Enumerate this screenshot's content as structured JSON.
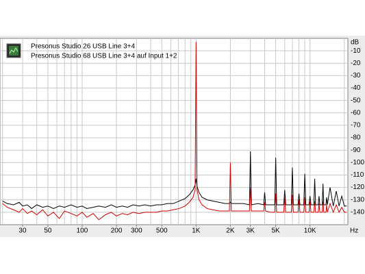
{
  "chart_data": {
    "type": "line",
    "log_x": true,
    "grid": true,
    "y_label": "dB",
    "x_label": "Hz",
    "xlim": [
      19,
      21500
    ],
    "ylim": [
      -150,
      0
    ],
    "xticks": [
      30,
      50,
      100,
      200,
      300,
      500,
      {
        "value": 1000,
        "label": "1K"
      },
      {
        "value": 2000,
        "label": "2K"
      },
      {
        "value": 3000,
        "label": "3K"
      },
      {
        "value": 5000,
        "label": "5K"
      },
      {
        "value": 10000,
        "label": "10K"
      }
    ],
    "xgrid": [
      20,
      30,
      40,
      50,
      60,
      70,
      80,
      90,
      100,
      200,
      300,
      400,
      500,
      600,
      700,
      800,
      900,
      1000,
      2000,
      3000,
      4000,
      5000,
      6000,
      7000,
      8000,
      9000,
      10000,
      20000
    ],
    "yticks": [
      -10,
      -20,
      -30,
      -40,
      -50,
      -60,
      -70,
      -80,
      -90,
      -100,
      -110,
      -120,
      -130,
      -140
    ],
    "x": [
      20,
      22,
      25,
      28,
      30,
      33,
      36,
      40,
      45,
      50,
      56,
      63,
      70,
      80,
      90,
      100,
      110,
      125,
      140,
      160,
      180,
      200,
      225,
      250,
      280,
      315,
      355,
      400,
      450,
      500,
      560,
      630,
      710,
      800,
      870,
      940,
      980,
      1000,
      1020,
      1060,
      1130,
      1250,
      1400,
      1600,
      1800,
      1960,
      2000,
      2040,
      2300,
      2600,
      2940,
      3000,
      3060,
      3500,
      3920,
      4000,
      4080,
      4500,
      4900,
      5000,
      5100,
      5500,
      5880,
      6000,
      6120,
      6500,
      6860,
      7000,
      7140,
      7500,
      7840,
      8000,
      8160,
      8500,
      8820,
      9000,
      9180,
      9500,
      9800,
      10000,
      10200,
      10800,
      11000,
      11200,
      11800,
      12000,
      12200,
      12800,
      13000,
      13200,
      13800,
      14000,
      14200,
      15000,
      16000,
      17000,
      18000,
      19000,
      20000,
      21000
    ],
    "series": [
      {
        "name": "Presonus Studio 26 USB Line 3+4",
        "color": "#000000",
        "values": [
          -131,
          -133,
          -134,
          -132,
          -135,
          -134,
          -137,
          -134,
          -136,
          -135,
          -137,
          -135,
          -136,
          -134,
          -136,
          -135,
          -137,
          -136,
          -135,
          -136,
          -134,
          -136,
          -135,
          -136,
          -134,
          -135,
          -134,
          -135,
          -134,
          -134,
          -133,
          -133,
          -131,
          -129,
          -126,
          -122,
          -118,
          -113,
          -119,
          -124,
          -128,
          -130,
          -131,
          -132,
          -133,
          -133,
          -132,
          -133,
          -133,
          -133,
          -134,
          -91,
          -134,
          -133,
          -134,
          -124,
          -134,
          -134,
          -134,
          -96,
          -134,
          -134,
          -134,
          -122,
          -134,
          -134,
          -134,
          -104,
          -134,
          -134,
          -134,
          -125,
          -134,
          -134,
          -134,
          -109,
          -134,
          -134,
          -134,
          -127,
          -134,
          -134,
          -113,
          -134,
          -134,
          -127,
          -134,
          -134,
          -117,
          -134,
          -134,
          -128,
          -134,
          -120,
          -135,
          -123,
          -135,
          -127,
          -135,
          -135
        ]
      },
      {
        "name": "Presonus Studio 68 USB Line 3+4 auf Input 1+2",
        "color": "#cc0000",
        "values": [
          -133,
          -136,
          -138,
          -140,
          -137,
          -141,
          -139,
          -142,
          -138,
          -143,
          -140,
          -145,
          -139,
          -141,
          -143,
          -140,
          -144,
          -141,
          -146,
          -142,
          -140,
          -143,
          -141,
          -142,
          -140,
          -141,
          -140,
          -140,
          -140,
          -139,
          -139,
          -138,
          -137,
          -135,
          -132,
          -128,
          -122,
          -3,
          -122,
          -130,
          -134,
          -137,
          -138,
          -139,
          -139,
          -139,
          -100,
          -139,
          -139,
          -139,
          -139,
          -120,
          -139,
          -139,
          -139,
          -132,
          -139,
          -140,
          -140,
          -125,
          -140,
          -140,
          -140,
          -128,
          -140,
          -140,
          -140,
          -126,
          -140,
          -140,
          -140,
          -130,
          -140,
          -140,
          -140,
          -128,
          -140,
          -140,
          -140,
          -131,
          -140,
          -140,
          -131,
          -140,
          -140,
          -133,
          -140,
          -140,
          -131,
          -140,
          -140,
          -134,
          -140,
          -133,
          -140,
          -134,
          -140,
          -136,
          -140,
          -140
        ]
      }
    ]
  }
}
